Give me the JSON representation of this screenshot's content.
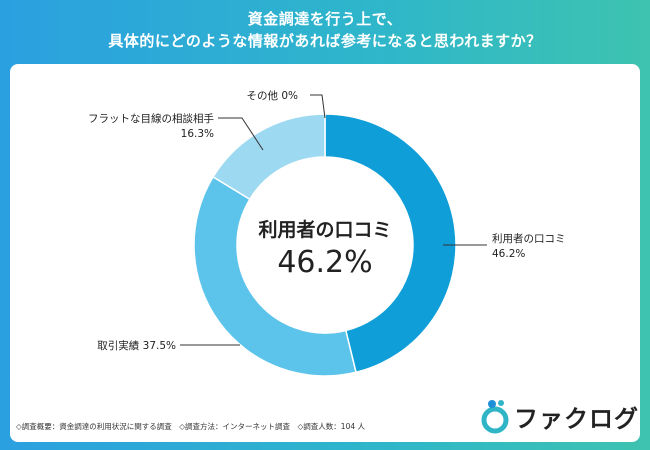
{
  "title": {
    "line1": "資金調達を行う上で、",
    "line2": "具体的にどのような情報があれば参考になると思われますか？"
  },
  "chart_data": {
    "type": "pie",
    "title": "資金調達を行う上で、具体的にどのような情報があれば参考になると思われますか？",
    "center_label": "利用者の口コミ",
    "center_value": "46.2%",
    "slices": [
      {
        "label": "利用者の口コミ",
        "value": 46.2,
        "display": "46.2%",
        "color": "#0f9ed8"
      },
      {
        "label": "取引実績",
        "value": 37.5,
        "display": "37.5%",
        "color": "#5cc3ea"
      },
      {
        "label": "フラットな目線の相談相手",
        "value": 16.3,
        "display": "16.3%",
        "color": "#9ed9f2"
      },
      {
        "label": "その他",
        "value": 0,
        "display": "0%",
        "color": "#cdeefa"
      }
    ]
  },
  "footnote": "◇調査概要：資金調達の利用状況に関する調査　◇調査方法：インターネット調査　◇調査人数：104 人",
  "brand": {
    "name": "ファクログ",
    "colors": {
      "logo_mark": "#2fb5c5",
      "logo_dot": "#1d8fd6"
    }
  }
}
